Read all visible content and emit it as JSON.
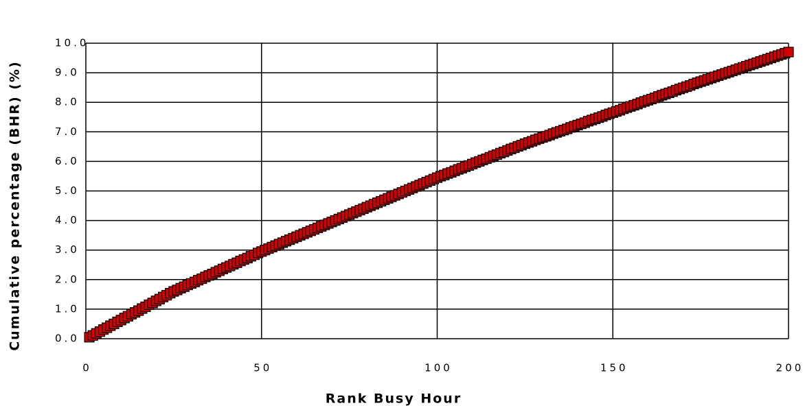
{
  "chart_data": {
    "type": "scatter",
    "x_label": "Rank Busy Hour",
    "y_label": "Cumulative percentage (BHR) (%)",
    "xlim": [
      0,
      200
    ],
    "xticks": [
      0,
      50,
      100,
      150,
      200
    ],
    "ylim": [
      0,
      10
    ],
    "yticks": [
      {
        "value": 0,
        "label": "0.0"
      },
      {
        "value": 1,
        "label": "1.0"
      },
      {
        "value": 2,
        "label": "2.0"
      },
      {
        "value": 3,
        "label": "3.0"
      },
      {
        "value": 4,
        "label": "4.0"
      },
      {
        "value": 5,
        "label": "5.0"
      },
      {
        "value": 6,
        "label": "6.0"
      },
      {
        "value": 7,
        "label": "7.0"
      },
      {
        "value": 8,
        "label": "8.0"
      },
      {
        "value": 9,
        "label": "9.0"
      },
      {
        "value": 10,
        "label": "10.0"
      }
    ],
    "grid": true,
    "color": "#d40000",
    "x": [
      1,
      2,
      3,
      4,
      5,
      6,
      7,
      8,
      9,
      10,
      11,
      12,
      13,
      14,
      15,
      16,
      17,
      18,
      19,
      20,
      21,
      22,
      23,
      24,
      25,
      26,
      27,
      28,
      29,
      30,
      31,
      32,
      33,
      34,
      35,
      36,
      37,
      38,
      39,
      40,
      41,
      42,
      43,
      44,
      45,
      46,
      47,
      48,
      49,
      50,
      51,
      52,
      53,
      54,
      55,
      56,
      57,
      58,
      59,
      60,
      61,
      62,
      63,
      64,
      65,
      66,
      67,
      68,
      69,
      70,
      71,
      72,
      73,
      74,
      75,
      76,
      77,
      78,
      79,
      80,
      81,
      82,
      83,
      84,
      85,
      86,
      87,
      88,
      89,
      90,
      91,
      92,
      93,
      94,
      95,
      96,
      97,
      98,
      99,
      100,
      101,
      102,
      103,
      104,
      105,
      106,
      107,
      108,
      109,
      110,
      111,
      112,
      113,
      114,
      115,
      116,
      117,
      118,
      119,
      120,
      121,
      122,
      123,
      124,
      125,
      126,
      127,
      128,
      129,
      130,
      131,
      132,
      133,
      134,
      135,
      136,
      137,
      138,
      139,
      140,
      141,
      142,
      143,
      144,
      145,
      146,
      147,
      148,
      149,
      150,
      151,
      152,
      153,
      154,
      155,
      156,
      157,
      158,
      159,
      160,
      161,
      162,
      163,
      164,
      165,
      166,
      167,
      168,
      169,
      170,
      171,
      172,
      173,
      174,
      175,
      176,
      177,
      178,
      179,
      180,
      181,
      182,
      183,
      184,
      185,
      186,
      187,
      188,
      189,
      190,
      191,
      192,
      193,
      194,
      195,
      196,
      197,
      198,
      199,
      200
    ],
    "values": [
      0.05,
      0.11,
      0.18,
      0.24,
      0.31,
      0.37,
      0.44,
      0.5,
      0.57,
      0.63,
      0.7,
      0.76,
      0.83,
      0.89,
      0.95,
      1.02,
      1.08,
      1.15,
      1.21,
      1.28,
      1.34,
      1.41,
      1.47,
      1.54,
      1.6,
      1.65,
      1.71,
      1.76,
      1.82,
      1.87,
      1.92,
      1.98,
      2.03,
      2.09,
      2.14,
      2.19,
      2.25,
      2.3,
      2.36,
      2.41,
      2.46,
      2.52,
      2.57,
      2.63,
      2.68,
      2.73,
      2.79,
      2.84,
      2.9,
      2.95,
      3.0,
      3.05,
      3.1,
      3.15,
      3.2,
      3.25,
      3.3,
      3.35,
      3.4,
      3.45,
      3.5,
      3.55,
      3.6,
      3.65,
      3.7,
      3.75,
      3.8,
      3.85,
      3.9,
      3.95,
      4.0,
      4.05,
      4.1,
      4.15,
      4.2,
      4.25,
      4.3,
      4.35,
      4.4,
      4.45,
      4.5,
      4.55,
      4.6,
      4.65,
      4.7,
      4.75,
      4.8,
      4.85,
      4.9,
      4.95,
      5.0,
      5.05,
      5.1,
      5.15,
      5.2,
      5.25,
      5.3,
      5.35,
      5.4,
      5.45,
      5.5,
      5.54,
      5.59,
      5.63,
      5.68,
      5.73,
      5.77,
      5.82,
      5.86,
      5.91,
      5.96,
      6.0,
      6.05,
      6.09,
      6.14,
      6.19,
      6.23,
      6.28,
      6.32,
      6.37,
      6.42,
      6.46,
      6.51,
      6.55,
      6.6,
      6.64,
      6.68,
      6.73,
      6.77,
      6.81,
      6.85,
      6.89,
      6.94,
      6.98,
      7.02,
      7.06,
      7.1,
      7.15,
      7.19,
      7.23,
      7.27,
      7.31,
      7.36,
      7.4,
      7.44,
      7.48,
      7.52,
      7.57,
      7.61,
      7.65,
      7.69,
      7.73,
      7.78,
      7.82,
      7.86,
      7.9,
      7.94,
      7.99,
      8.03,
      8.07,
      8.11,
      8.15,
      8.2,
      8.24,
      8.28,
      8.32,
      8.36,
      8.41,
      8.45,
      8.49,
      8.53,
      8.57,
      8.62,
      8.66,
      8.7,
      8.74,
      8.78,
      8.82,
      8.86,
      8.9,
      8.94,
      8.98,
      9.02,
      9.06,
      9.1,
      9.14,
      9.18,
      9.22,
      9.26,
      9.3,
      9.34,
      9.38,
      9.42,
      9.46,
      9.5,
      9.54,
      9.58,
      9.62,
      9.66,
      9.7
    ]
  }
}
